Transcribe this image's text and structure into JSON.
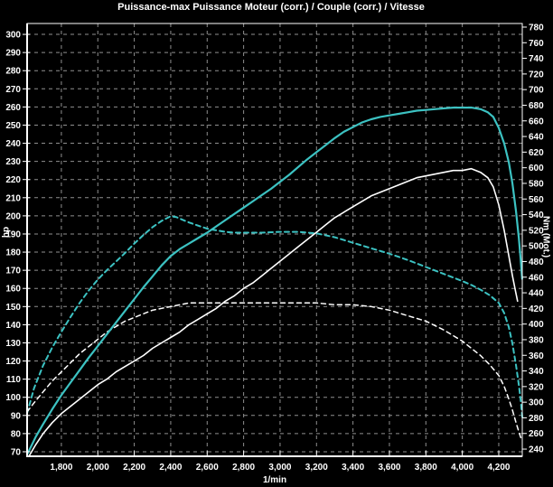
{
  "colors": {
    "background": "#000000",
    "grid": "#8f8f8f",
    "axis": "#ffffff",
    "teal": "#3cc2c2",
    "white": "#ffffff"
  },
  "chart_data": {
    "type": "line",
    "title": "Puissance-max Puissance Moteur (corr.) / Couple (corr.) / Vitesse",
    "grid": "dashed, aligned to left-axis 10 hp steps and 200 rpm steps",
    "legend": "none",
    "x_axis": {
      "label": "1/min",
      "min": 1612,
      "max": 4329,
      "ticks": [
        1800,
        2000,
        2200,
        2400,
        2600,
        2800,
        3000,
        3200,
        3400,
        3600,
        3800,
        4000,
        4200
      ],
      "tick_labels": [
        "1,800",
        "2,000",
        "2,200",
        "2,400",
        "2,600",
        "2,800",
        "3,000",
        "3,200",
        "3,400",
        "3,600",
        "3,800",
        "4,000",
        "4,200"
      ]
    },
    "y_left": {
      "label": "hp",
      "min": 67.5,
      "max": 306,
      "ticks": [
        300,
        290,
        280,
        270,
        260,
        250,
        240,
        230,
        220,
        210,
        200,
        190,
        180,
        170,
        160,
        150,
        140,
        130,
        120,
        110,
        100,
        90,
        80,
        70
      ]
    },
    "y_right": {
      "label": "Nm (Mot.)",
      "min": 230.8,
      "max": 784.6,
      "ticks": [
        780,
        760,
        740,
        720,
        700,
        680,
        660,
        640,
        620,
        600,
        580,
        560,
        540,
        520,
        500,
        480,
        460,
        440,
        420,
        400,
        380,
        360,
        340,
        320,
        300,
        280,
        260,
        240
      ]
    },
    "series": [
      {
        "id": "couple-corr-dashed",
        "channel": "Couple (corr.)",
        "unit": "Nm",
        "axis": "right",
        "style": "dashed",
        "color": "#3cc2c2",
        "width": 2,
        "points": [
          [
            1612,
            286
          ],
          [
            1650,
            318
          ],
          [
            1700,
            347
          ],
          [
            1750,
            370
          ],
          [
            1800,
            390
          ],
          [
            1850,
            409
          ],
          [
            1900,
            427
          ],
          [
            1950,
            443
          ],
          [
            2000,
            457
          ],
          [
            2050,
            469
          ],
          [
            2100,
            480
          ],
          [
            2150,
            491
          ],
          [
            2200,
            503
          ],
          [
            2250,
            514
          ],
          [
            2300,
            524
          ],
          [
            2350,
            532
          ],
          [
            2400,
            538
          ],
          [
            2430,
            537
          ],
          [
            2460,
            534
          ],
          [
            2500,
            530
          ],
          [
            2550,
            526
          ],
          [
            2600,
            522
          ],
          [
            2650,
            520
          ],
          [
            2700,
            518
          ],
          [
            2750,
            517
          ],
          [
            2800,
            517
          ],
          [
            2900,
            517
          ],
          [
            3000,
            518
          ],
          [
            3100,
            518
          ],
          [
            3200,
            516
          ],
          [
            3300,
            511
          ],
          [
            3400,
            504
          ],
          [
            3500,
            497
          ],
          [
            3600,
            490
          ],
          [
            3700,
            482
          ],
          [
            3800,
            473
          ],
          [
            3900,
            464
          ],
          [
            4000,
            455
          ],
          [
            4050,
            450
          ],
          [
            4100,
            444
          ],
          [
            4150,
            437
          ],
          [
            4200,
            427
          ],
          [
            4230,
            414
          ],
          [
            4255,
            396
          ],
          [
            4275,
            375
          ],
          [
            4295,
            347
          ],
          [
            4310,
            322
          ],
          [
            4320,
            303
          ],
          [
            4329,
            281
          ]
        ]
      },
      {
        "id": "puissance-corr-dashed",
        "channel": "Puissance Moteur (corr.)",
        "unit": "hp",
        "axis": "left",
        "style": "dashed",
        "color": "#ffffff",
        "width": 1.5,
        "points": [
          [
            1612,
            92
          ],
          [
            1650,
            97
          ],
          [
            1700,
            103
          ],
          [
            1750,
            109
          ],
          [
            1800,
            114
          ],
          [
            1850,
            119
          ],
          [
            1900,
            124
          ],
          [
            1950,
            128
          ],
          [
            2000,
            132
          ],
          [
            2050,
            136
          ],
          [
            2100,
            139
          ],
          [
            2150,
            142
          ],
          [
            2200,
            144
          ],
          [
            2250,
            146
          ],
          [
            2300,
            148
          ],
          [
            2350,
            149
          ],
          [
            2400,
            150
          ],
          [
            2450,
            151
          ],
          [
            2500,
            152
          ],
          [
            2600,
            152
          ],
          [
            2700,
            152
          ],
          [
            2800,
            152
          ],
          [
            2900,
            152
          ],
          [
            3000,
            152
          ],
          [
            3100,
            152
          ],
          [
            3200,
            152
          ],
          [
            3300,
            151
          ],
          [
            3400,
            151
          ],
          [
            3500,
            150
          ],
          [
            3600,
            148
          ],
          [
            3700,
            145
          ],
          [
            3800,
            142
          ],
          [
            3900,
            137
          ],
          [
            4000,
            131
          ],
          [
            4050,
            127
          ],
          [
            4100,
            123
          ],
          [
            4150,
            118
          ],
          [
            4200,
            112
          ],
          [
            4230,
            106
          ],
          [
            4255,
            99
          ],
          [
            4275,
            93
          ],
          [
            4295,
            86
          ],
          [
            4310,
            81
          ],
          [
            4320,
            78
          ],
          [
            4329,
            76
          ]
        ]
      },
      {
        "id": "couple-corr-solid",
        "channel": "Couple (corr.)",
        "unit": "Nm",
        "axis": "right",
        "style": "solid",
        "color": "#3cc2c2",
        "width": 2.2,
        "points": [
          [
            1612,
            233
          ],
          [
            1660,
            256
          ],
          [
            1700,
            272
          ],
          [
            1750,
            291
          ],
          [
            1800,
            309
          ],
          [
            1850,
            325
          ],
          [
            1900,
            341
          ],
          [
            1950,
            357
          ],
          [
            2000,
            372
          ],
          [
            2050,
            387
          ],
          [
            2100,
            402
          ],
          [
            2150,
            417
          ],
          [
            2200,
            432
          ],
          [
            2250,
            447
          ],
          [
            2300,
            461
          ],
          [
            2350,
            475
          ],
          [
            2400,
            487
          ],
          [
            2450,
            496
          ],
          [
            2500,
            503
          ],
          [
            2550,
            510
          ],
          [
            2600,
            517
          ],
          [
            2650,
            525
          ],
          [
            2700,
            533
          ],
          [
            2750,
            541
          ],
          [
            2800,
            549
          ],
          [
            2850,
            557
          ],
          [
            2900,
            565
          ],
          [
            2950,
            573
          ],
          [
            3000,
            582
          ],
          [
            3050,
            591
          ],
          [
            3100,
            601
          ],
          [
            3150,
            611
          ],
          [
            3200,
            620
          ],
          [
            3250,
            629
          ],
          [
            3300,
            638
          ],
          [
            3350,
            646
          ],
          [
            3400,
            652
          ],
          [
            3450,
            658
          ],
          [
            3500,
            662
          ],
          [
            3550,
            665
          ],
          [
            3600,
            667
          ],
          [
            3650,
            669
          ],
          [
            3700,
            671
          ],
          [
            3750,
            673
          ],
          [
            3800,
            674
          ],
          [
            3850,
            675
          ],
          [
            3900,
            676
          ],
          [
            3950,
            677
          ],
          [
            4000,
            677
          ],
          [
            4050,
            677
          ],
          [
            4100,
            675
          ],
          [
            4140,
            671
          ],
          [
            4170,
            665
          ],
          [
            4200,
            651
          ],
          [
            4230,
            631
          ],
          [
            4255,
            607
          ],
          [
            4275,
            580
          ],
          [
            4295,
            544
          ],
          [
            4310,
            510
          ],
          [
            4320,
            483
          ],
          [
            4328,
            458
          ]
        ]
      },
      {
        "id": "puissance-corr-solid",
        "channel": "Puissance Moteur (corr.)",
        "unit": "hp",
        "axis": "left",
        "style": "solid",
        "color": "#ffffff",
        "width": 1.6,
        "points": [
          [
            1625,
            68
          ],
          [
            1660,
            74
          ],
          [
            1700,
            80
          ],
          [
            1750,
            86
          ],
          [
            1800,
            91
          ],
          [
            1850,
            95
          ],
          [
            1900,
            99
          ],
          [
            1950,
            103
          ],
          [
            2000,
            107
          ],
          [
            2050,
            110
          ],
          [
            2100,
            114
          ],
          [
            2150,
            117
          ],
          [
            2200,
            120
          ],
          [
            2250,
            123
          ],
          [
            2300,
            127
          ],
          [
            2350,
            130
          ],
          [
            2400,
            133
          ],
          [
            2450,
            136
          ],
          [
            2500,
            140
          ],
          [
            2550,
            143
          ],
          [
            2600,
            146
          ],
          [
            2650,
            149
          ],
          [
            2700,
            153
          ],
          [
            2750,
            156
          ],
          [
            2800,
            160
          ],
          [
            2850,
            163
          ],
          [
            2900,
            167
          ],
          [
            2950,
            171
          ],
          [
            3000,
            175
          ],
          [
            3050,
            179
          ],
          [
            3100,
            183
          ],
          [
            3150,
            187
          ],
          [
            3200,
            191
          ],
          [
            3250,
            195
          ],
          [
            3300,
            199
          ],
          [
            3350,
            202
          ],
          [
            3400,
            205
          ],
          [
            3450,
            208
          ],
          [
            3500,
            211
          ],
          [
            3550,
            213
          ],
          [
            3600,
            215
          ],
          [
            3650,
            217
          ],
          [
            3700,
            219
          ],
          [
            3750,
            221
          ],
          [
            3800,
            222
          ],
          [
            3850,
            223
          ],
          [
            3900,
            224
          ],
          [
            3950,
            225
          ],
          [
            4000,
            225
          ],
          [
            4050,
            226
          ],
          [
            4100,
            224
          ],
          [
            4140,
            221
          ],
          [
            4170,
            216
          ],
          [
            4200,
            206
          ],
          [
            4230,
            192
          ],
          [
            4255,
            178
          ],
          [
            4275,
            167
          ],
          [
            4293,
            158
          ],
          [
            4303,
            153
          ]
        ]
      }
    ]
  }
}
